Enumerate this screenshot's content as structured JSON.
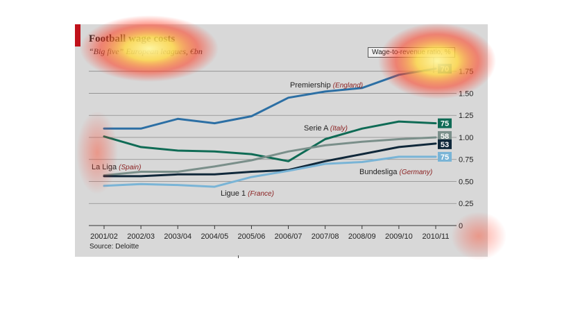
{
  "header": {
    "title": "Football wage costs",
    "subtitle": "“Big five” European leagues, €bn"
  },
  "ratio_label": "Wage-to-revenue ratio, %",
  "source": "Source: Deloitte",
  "colors": {
    "panel": "#d8d8d8",
    "accent": "#c0121b",
    "premiership": "#2c6fa4",
    "serie_a": "#0f6b55",
    "la_liga": "#7a8f8a",
    "bundesliga": "#10283a",
    "ligue_1": "#79b4d6"
  },
  "chart_data": {
    "type": "line",
    "title": "Football wage costs",
    "subtitle": "“Big five” European leagues, €bn",
    "categories": [
      "2001/02",
      "2002/03",
      "2003/04",
      "2004/05",
      "2005/06",
      "2006/07",
      "2007/08",
      "2008/09",
      "2009/10",
      "2010/11"
    ],
    "ylim": [
      0,
      1.85
    ],
    "yticks": [
      "0",
      "0.25",
      "0.50",
      "0.75",
      "1.00",
      "1.25",
      "1.50",
      "1.75"
    ],
    "ytick_values": [
      0,
      0.25,
      0.5,
      0.75,
      1.0,
      1.25,
      1.5,
      1.75
    ],
    "grid": true,
    "series": [
      {
        "name": "Premiership",
        "country": "(England)",
        "color": "#2c6fa4",
        "ratio": "70",
        "values": [
          1.1,
          1.1,
          1.21,
          1.16,
          1.24,
          1.45,
          1.52,
          1.56,
          1.71,
          1.78
        ]
      },
      {
        "name": "Serie A",
        "country": "(Italy)",
        "color": "#0f6b55",
        "ratio": "75",
        "values": [
          1.01,
          0.89,
          0.85,
          0.84,
          0.81,
          0.73,
          0.98,
          1.1,
          1.18,
          1.16
        ]
      },
      {
        "name": "La Liga",
        "country": "(Spain)",
        "color": "#7a8f8a",
        "ratio": "58",
        "values": [
          0.57,
          0.61,
          0.61,
          0.67,
          0.74,
          0.84,
          0.91,
          0.95,
          0.98,
          1.0
        ]
      },
      {
        "name": "Bundesliga",
        "country": "(Germany)",
        "color": "#10283a",
        "ratio": "53",
        "values": [
          0.56,
          0.56,
          0.58,
          0.58,
          0.61,
          0.63,
          0.73,
          0.81,
          0.89,
          0.93
        ]
      },
      {
        "name": "Ligue 1",
        "country": "(France)",
        "color": "#79b4d6",
        "ratio": "75",
        "values": [
          0.45,
          0.47,
          0.46,
          0.44,
          0.55,
          0.62,
          0.7,
          0.72,
          0.78,
          0.78
        ]
      }
    ]
  }
}
